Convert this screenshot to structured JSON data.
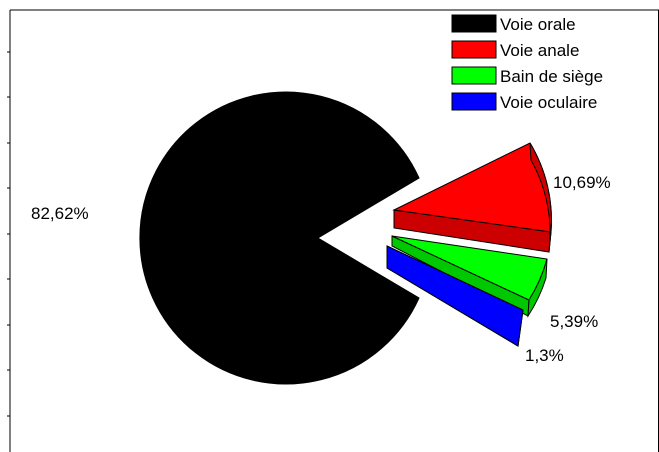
{
  "chart_data": {
    "type": "pie",
    "exploded": true,
    "legend_position": "top-right",
    "slices": [
      {
        "name": "Voie orale",
        "value": 82.62,
        "label": "82,62%",
        "color": "#000000"
      },
      {
        "name": "Voie anale",
        "value": 10.69,
        "label": "10,69%",
        "color": "#ff0000"
      },
      {
        "name": "Bain de siège",
        "value": 5.39,
        "label": "5,39%",
        "color": "#00ff00"
      },
      {
        "name": "Voie oculaire",
        "value": 1.3,
        "label": "1,3%",
        "color": "#0000ff"
      }
    ]
  }
}
